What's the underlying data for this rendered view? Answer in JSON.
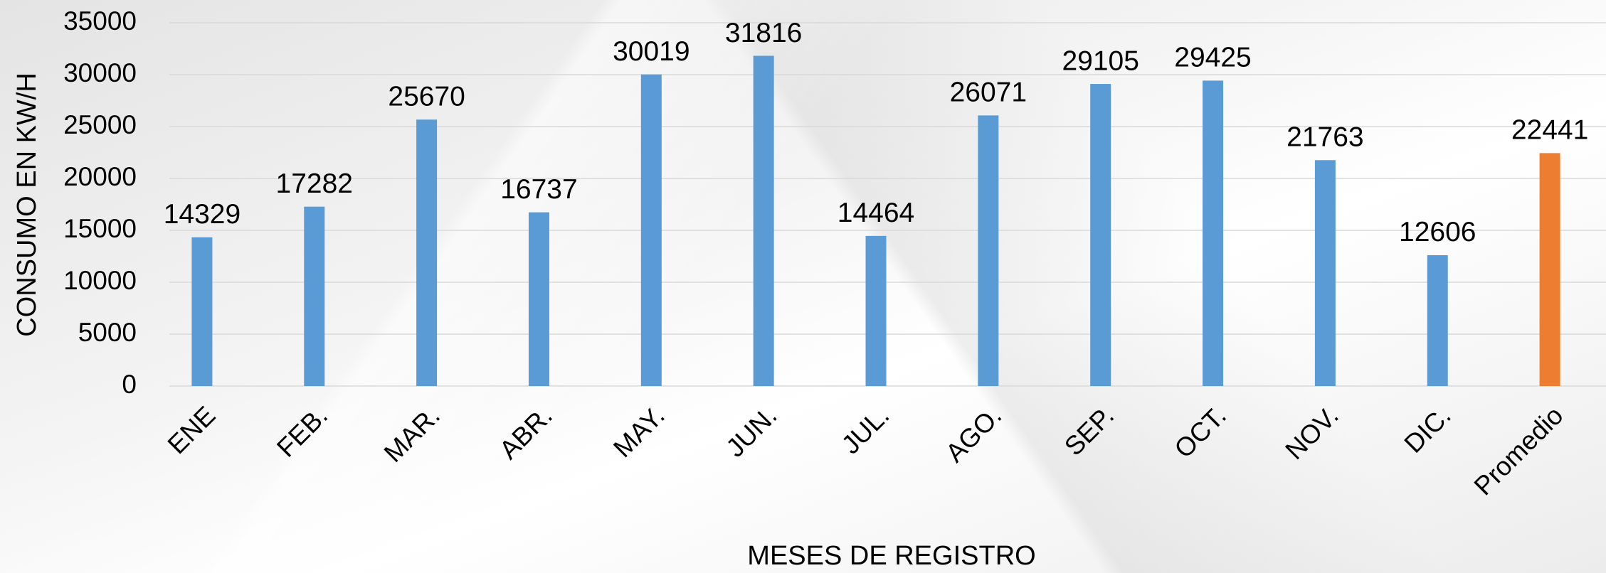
{
  "chart_data": {
    "type": "bar",
    "categories": [
      "ENE",
      "FEB.",
      "MAR.",
      "ABR.",
      "MAY.",
      "JUN.",
      "JUL.",
      "AGO.",
      "SEP.",
      "OCT.",
      "NOV.",
      "DIC.",
      "Promedio"
    ],
    "values": [
      14329,
      17282,
      25670,
      16737,
      30019,
      31816,
      14464,
      26071,
      29105,
      29425,
      21763,
      12606,
      22441
    ],
    "colors": [
      "#5b9bd5",
      "#5b9bd5",
      "#5b9bd5",
      "#5b9bd5",
      "#5b9bd5",
      "#5b9bd5",
      "#5b9bd5",
      "#5b9bd5",
      "#5b9bd5",
      "#5b9bd5",
      "#5b9bd5",
      "#5b9bd5",
      "#ed7d31"
    ],
    "x_label": "MESES DE REGISTRO",
    "y_label": "CONSUMO EN KW/H",
    "ylim": [
      0,
      35000
    ],
    "yticks": [
      0,
      5000,
      10000,
      15000,
      20000,
      25000,
      30000,
      35000
    ],
    "grid": true
  }
}
